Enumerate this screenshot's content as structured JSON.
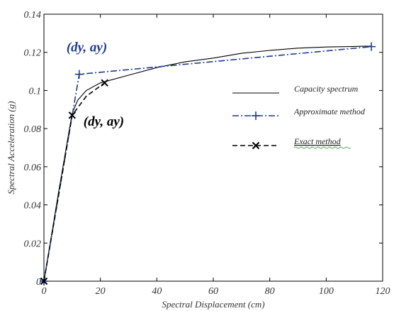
{
  "chart_data": {
    "type": "line",
    "xlabel": "Spectral Displacement (cm)",
    "ylabel": "Spectral Acceleration (g)",
    "xlim": [
      0,
      120
    ],
    "ylim": [
      0,
      0.14
    ],
    "xticks": [
      0,
      20,
      40,
      60,
      80,
      100,
      120
    ],
    "yticks": [
      0,
      0.02,
      0.04,
      0.06,
      0.08,
      0.1,
      0.12,
      0.14
    ],
    "xtick_labels": [
      "0",
      "20",
      "40",
      "60",
      "80",
      "100",
      "120"
    ],
    "ytick_labels": [
      "0",
      "0.02",
      "0.04",
      "0.06",
      "0.08",
      "0.1",
      "0.12",
      "0.14"
    ],
    "grid": false,
    "legend_position": "right",
    "series": [
      {
        "name": "Capacity spectrum",
        "color": "#000000",
        "style": "solid",
        "marker": "none",
        "x": [
          0,
          5,
          10,
          12,
          15,
          20,
          30,
          40,
          50,
          60,
          70,
          80,
          90,
          100,
          110,
          116
        ],
        "y": [
          0,
          0.045,
          0.088,
          0.095,
          0.1,
          0.104,
          0.108,
          0.112,
          0.115,
          0.117,
          0.1195,
          0.121,
          0.1222,
          0.1228,
          0.1231,
          0.1233
        ]
      },
      {
        "name": "Approximate method",
        "color": "#1f3c8c",
        "style": "dashdot",
        "marker": "plus",
        "x": [
          0,
          12.5,
          116
        ],
        "y": [
          0,
          0.1085,
          0.123
        ],
        "marker_indices": [
          0,
          1,
          2
        ]
      },
      {
        "name": "Exact method",
        "color": "#000000",
        "style": "dashed",
        "marker": "x",
        "x": [
          0,
          10,
          15,
          21.5
        ],
        "y": [
          0,
          0.087,
          0.097,
          0.104
        ],
        "marker_indices": [
          0,
          1,
          3
        ]
      }
    ],
    "annotations": [
      {
        "text": "(dy, ay)",
        "x": 8,
        "y": 0.1205,
        "color": "#1f3c8c"
      },
      {
        "text": "(dy, ay)",
        "x": 14,
        "y": 0.0815,
        "color": "#000000"
      }
    ]
  }
}
